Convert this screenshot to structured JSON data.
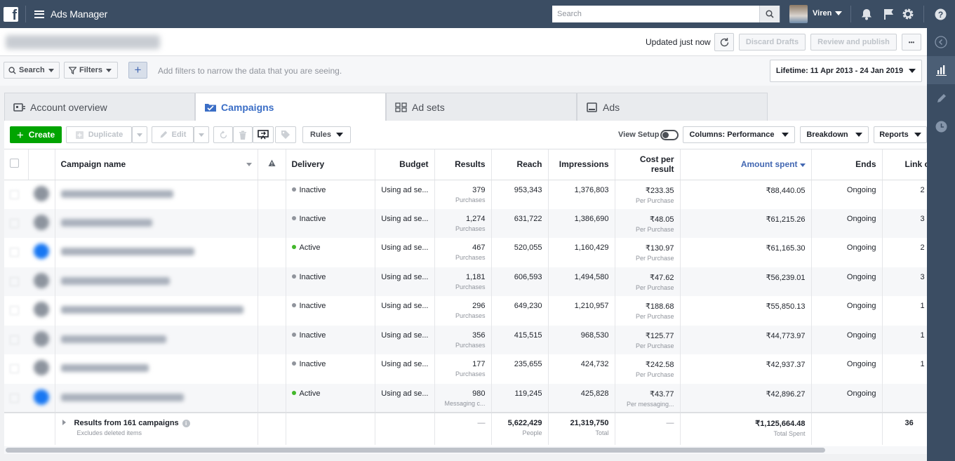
{
  "app": {
    "title": "Ads Manager"
  },
  "search": {
    "placeholder": "Search"
  },
  "user": {
    "name": "Viren"
  },
  "subbar": {
    "updated": "Updated just now",
    "discard": "Discard Drafts",
    "review": "Review and publish",
    "more": "•••"
  },
  "filters": {
    "search": "Search",
    "filters": "Filters",
    "hint": "Add filters to narrow the data that you are seeing.",
    "date_range": "Lifetime: 11 Apr 2013 - 24 Jan 2019"
  },
  "tabs": [
    "Account overview",
    "Campaigns",
    "Ad sets",
    "Ads"
  ],
  "toolbar": {
    "create": "Create",
    "duplicate": "Duplicate",
    "edit": "Edit",
    "rules": "Rules",
    "view_setup": "View Setup",
    "columns": "Columns: Performance",
    "breakdown": "Breakdown",
    "reports": "Reports"
  },
  "columns": [
    "Campaign name",
    "",
    "Delivery",
    "Budget",
    "Results",
    "Reach",
    "Impressions",
    "Cost per result",
    "Amount spent",
    "Ends",
    "Link c"
  ],
  "rows": [
    {
      "delivery": "Inactive",
      "status_color": "#90949c",
      "budget": "Using ad se...",
      "results": "379",
      "results_sub": "Purchases",
      "reach": "953,343",
      "impressions": "1,376,803",
      "cpr": "₹233.35",
      "cpr_sub": "Per Purchase",
      "spent": "₹88,440.05",
      "ends": "Ongoing",
      "link": "2"
    },
    {
      "delivery": "Inactive",
      "status_color": "#90949c",
      "budget": "Using ad se...",
      "results": "1,274",
      "results_sub": "Purchases",
      "reach": "631,722",
      "impressions": "1,386,690",
      "cpr": "₹48.05",
      "cpr_sub": "Per Purchase",
      "spent": "₹61,215.26",
      "ends": "Ongoing",
      "link": "3"
    },
    {
      "delivery": "Active",
      "status_color": "#42b72a",
      "budget": "Using ad se...",
      "results": "467",
      "results_sub": "Purchases",
      "reach": "520,055",
      "impressions": "1,160,429",
      "cpr": "₹130.97",
      "cpr_sub": "Per Purchase",
      "spent": "₹61,165.30",
      "ends": "Ongoing",
      "link": "2"
    },
    {
      "delivery": "Inactive",
      "status_color": "#90949c",
      "budget": "Using ad se...",
      "results": "1,181",
      "results_sub": "Purchases",
      "reach": "606,593",
      "impressions": "1,494,580",
      "cpr": "₹47.62",
      "cpr_sub": "Per Purchase",
      "spent": "₹56,239.01",
      "ends": "Ongoing",
      "link": "3"
    },
    {
      "delivery": "Inactive",
      "status_color": "#90949c",
      "budget": "Using ad se...",
      "results": "296",
      "results_sub": "Purchases",
      "reach": "649,230",
      "impressions": "1,210,957",
      "cpr": "₹188.68",
      "cpr_sub": "Per Purchase",
      "spent": "₹55,850.13",
      "ends": "Ongoing",
      "link": "1"
    },
    {
      "delivery": "Inactive",
      "status_color": "#90949c",
      "budget": "Using ad se...",
      "results": "356",
      "results_sub": "Purchases",
      "reach": "415,515",
      "impressions": "968,530",
      "cpr": "₹125.77",
      "cpr_sub": "Per Purchase",
      "spent": "₹44,773.97",
      "ends": "Ongoing",
      "link": "1"
    },
    {
      "delivery": "Inactive",
      "status_color": "#90949c",
      "budget": "Using ad se...",
      "results": "177",
      "results_sub": "Purchases",
      "reach": "235,655",
      "impressions": "424,732",
      "cpr": "₹242.58",
      "cpr_sub": "Per Purchase",
      "spent": "₹42,937.37",
      "ends": "Ongoing",
      "link": "1"
    },
    {
      "delivery": "Active",
      "status_color": "#42b72a",
      "budget": "Using ad se...",
      "results": "980",
      "results_sub": "Messaging c...",
      "reach": "119,245",
      "impressions": "425,828",
      "cpr": "₹43.77",
      "cpr_sub": "Per messaging...",
      "spent": "₹42,896.27",
      "ends": "Ongoing",
      "link": ""
    }
  ],
  "totals": {
    "label": "Results from 161 campaigns",
    "sub": "Excludes deleted items",
    "results": "—",
    "reach": "5,622,429",
    "reach_sub": "People",
    "impressions": "21,319,750",
    "impressions_sub": "Total",
    "cpr": "—",
    "spent": "₹1,125,664.48",
    "spent_sub": "Total Spent",
    "link": "36"
  },
  "colors": {
    "topbar": "#3b4d63",
    "accent": "#3b6ec6",
    "create": "#00a400"
  }
}
